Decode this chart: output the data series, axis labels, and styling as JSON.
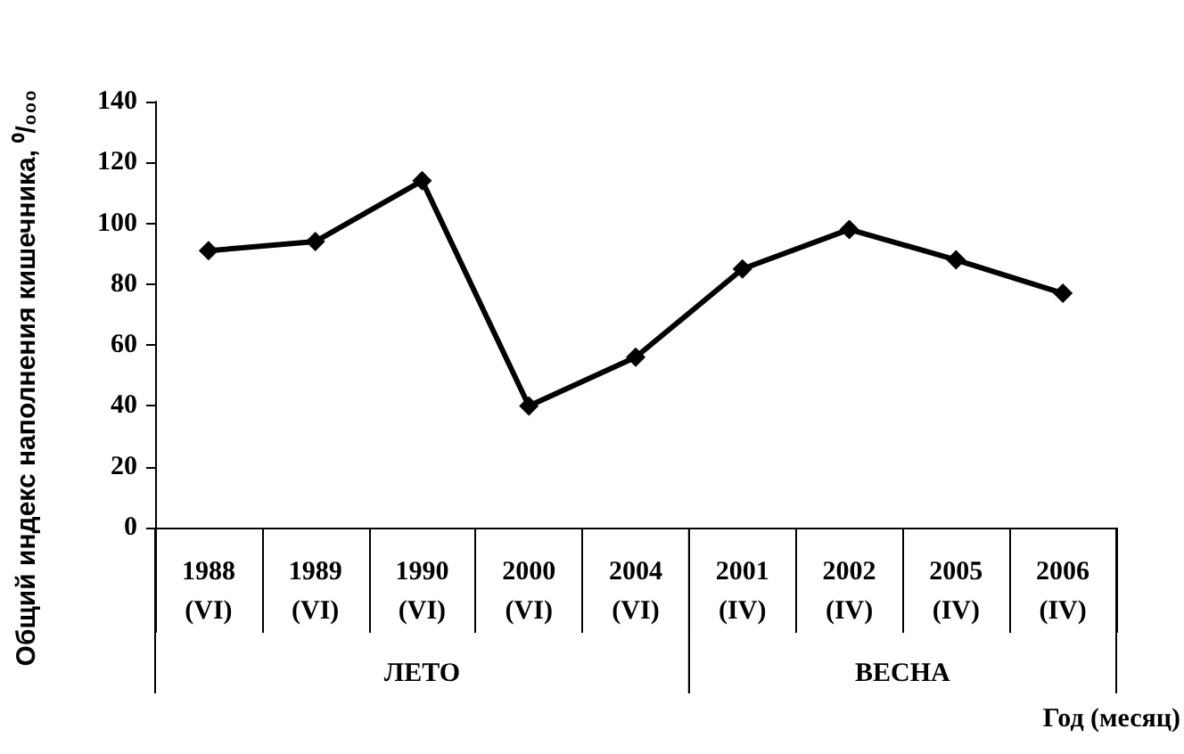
{
  "chart_data": {
    "type": "line",
    "ylabel": "Общий индекс наполнения кишечника, ⁰/₀₀₀",
    "xlabel": "Год (месяц)",
    "categories": [
      "1988\n(VI)",
      "1989\n(VI)",
      "1990\n(VI)",
      "2000\n(VI)",
      "2004\n(VI)",
      "2001\n(IV)",
      "2002\n(IV)",
      "2005\n(IV)",
      "2006\n(IV)"
    ],
    "series": [
      {
        "color": "#000000",
        "values": [
          91,
          94,
          114,
          40,
          56,
          85,
          98,
          88,
          77
        ]
      }
    ],
    "annotations": [
      "ЛЕТО",
      "ВЕСНА"
    ],
    "ylim": [
      0,
      140
    ],
    "yticks": [
      0,
      20,
      40,
      60,
      80,
      100,
      120,
      140
    ],
    "grid": false,
    "marker": "diamond",
    "line_style": "solid"
  }
}
